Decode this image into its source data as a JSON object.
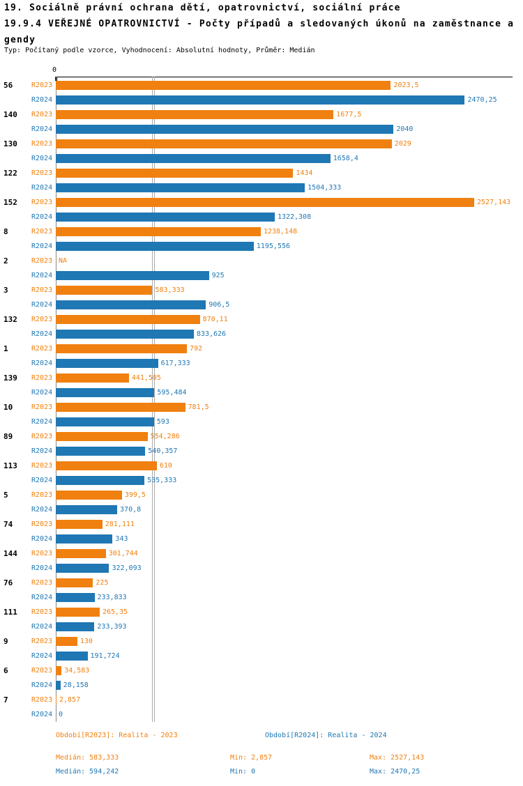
{
  "header": {
    "title_line1": "19. Sociálně právní ochrana dětí, opatrovnictví, sociální práce",
    "title_line2": "19.9.4 VEŘEJNÉ OPATROVNICTVÍ - Počty případů a sledovaných úkonů na zaměstnance a",
    "title_line3": "gendy",
    "subtitle": "Typ: Počítaný podle vzorce, Vyhodnocení: Absolutní hodnoty, Průměr: Medián"
  },
  "chart_data": {
    "type": "bar",
    "orientation": "horizontal",
    "x_axis": {
      "zero_label": "0",
      "xlim": [
        0,
        2527.143
      ]
    },
    "categories": [
      "56",
      "140",
      "130",
      "122",
      "152",
      "8",
      "2",
      "3",
      "132",
      "1",
      "139",
      "10",
      "89",
      "113",
      "5",
      "74",
      "144",
      "76",
      "111",
      "9",
      "6",
      "7"
    ],
    "series": [
      {
        "name": "R2023",
        "color": "#F0800F",
        "median": 583.333,
        "values": [
          2023.5,
          1677.5,
          2029,
          1434,
          2527.143,
          1238.148,
          null,
          583.333,
          870.11,
          792,
          441.505,
          781.5,
          554.286,
          610,
          399.5,
          281.111,
          301.744,
          225,
          265.35,
          130,
          34.583,
          2.857
        ],
        "labels": [
          "2023,5",
          "1677,5",
          "2029",
          "1434",
          "2527,143",
          "1238,148",
          "NA",
          "583,333",
          "870,11",
          "792",
          "441,505",
          "781,5",
          "554,286",
          "610",
          "399,5",
          "281,111",
          "301,744",
          "225",
          "265,35",
          "130",
          "34,583",
          "2,857"
        ]
      },
      {
        "name": "R2024",
        "color": "#1F77B4",
        "median": 594.242,
        "values": [
          2470.25,
          2040,
          1658.4,
          1504.333,
          1322.308,
          1195.556,
          925,
          906.5,
          833.626,
          617.333,
          595.484,
          593,
          540.357,
          535.333,
          370.8,
          343,
          322.093,
          233.833,
          233.393,
          191.724,
          28.158,
          0
        ],
        "labels": [
          "2470,25",
          "2040",
          "1658,4",
          "1504,333",
          "1322,308",
          "1195,556",
          "925",
          "906,5",
          "833,626",
          "617,333",
          "595,484",
          "593",
          "540,357",
          "535,333",
          "370,8",
          "343",
          "322,093",
          "233,833",
          "233,393",
          "191,724",
          "28,158",
          "0"
        ]
      }
    ]
  },
  "legend": {
    "r2023": {
      "color": "#F0800F",
      "period": "Období[R2023]: Realita - 2023",
      "median": "Medián: 583,333",
      "min": "Min: 2,857",
      "max": "Max: 2527,143"
    },
    "r2024": {
      "color": "#1F77B4",
      "period": "Období[R2024]: Realita - 2024",
      "median": "Medián: 594,242",
      "min": "Min: 0",
      "max": "Max: 2470,25"
    }
  }
}
